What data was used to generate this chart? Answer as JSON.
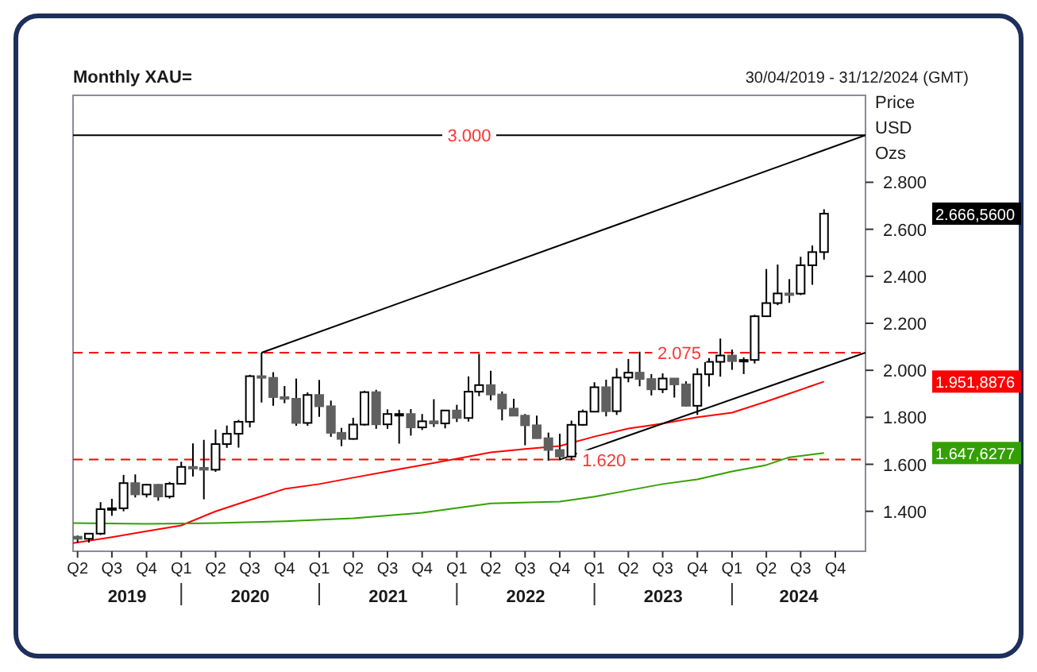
{
  "chart_data": {
    "type": "candlestick",
    "title": "Monthly XAU=",
    "subtitle": "30/04/2019 - 31/12/2024 (GMT)",
    "ylabel": "Price USD Ozs",
    "x": [
      "2019-04",
      "2019-05",
      "2019-06",
      "2019-07",
      "2019-08",
      "2019-09",
      "2019-10",
      "2019-11",
      "2019-12",
      "2020-01",
      "2020-02",
      "2020-03",
      "2020-04",
      "2020-05",
      "2020-06",
      "2020-07",
      "2020-08",
      "2020-09",
      "2020-10",
      "2020-11",
      "2020-12",
      "2021-01",
      "2021-02",
      "2021-03",
      "2021-04",
      "2021-05",
      "2021-06",
      "2021-07",
      "2021-08",
      "2021-09",
      "2021-10",
      "2021-11",
      "2021-12",
      "2022-01",
      "2022-02",
      "2022-03",
      "2022-04",
      "2022-05",
      "2022-06",
      "2022-07",
      "2022-08",
      "2022-09",
      "2022-10",
      "2022-11",
      "2022-12",
      "2023-01",
      "2023-02",
      "2023-03",
      "2023-04",
      "2023-05",
      "2023-06",
      "2023-07",
      "2023-08",
      "2023-09",
      "2023-10",
      "2023-11",
      "2023-12",
      "2024-01",
      "2024-02",
      "2024-03",
      "2024-04",
      "2024-05",
      "2024-06",
      "2024-07",
      "2024-08",
      "2024-09"
    ],
    "ohlc": [
      [
        1292,
        1297,
        1266,
        1283
      ],
      [
        1283,
        1306,
        1267,
        1305
      ],
      [
        1305,
        1439,
        1299,
        1409
      ],
      [
        1409,
        1453,
        1381,
        1413
      ],
      [
        1413,
        1555,
        1400,
        1520
      ],
      [
        1520,
        1557,
        1459,
        1472
      ],
      [
        1472,
        1517,
        1459,
        1513
      ],
      [
        1513,
        1516,
        1445,
        1463
      ],
      [
        1463,
        1525,
        1454,
        1517
      ],
      [
        1517,
        1611,
        1517,
        1589
      ],
      [
        1589,
        1689,
        1548,
        1585
      ],
      [
        1585,
        1704,
        1451,
        1577
      ],
      [
        1577,
        1748,
        1568,
        1686
      ],
      [
        1686,
        1765,
        1670,
        1730
      ],
      [
        1730,
        1789,
        1671,
        1781
      ],
      [
        1781,
        1981,
        1757,
        1975
      ],
      [
        1975,
        2075,
        1863,
        1968
      ],
      [
        1968,
        1992,
        1849,
        1886
      ],
      [
        1886,
        1933,
        1860,
        1879
      ],
      [
        1879,
        1965,
        1764,
        1776
      ],
      [
        1776,
        1906,
        1764,
        1895
      ],
      [
        1895,
        1959,
        1802,
        1847
      ],
      [
        1847,
        1871,
        1717,
        1734
      ],
      [
        1734,
        1755,
        1677,
        1708
      ],
      [
        1708,
        1798,
        1705,
        1769
      ],
      [
        1769,
        1913,
        1765,
        1907
      ],
      [
        1907,
        1917,
        1751,
        1770
      ],
      [
        1770,
        1834,
        1751,
        1814
      ],
      [
        1814,
        1832,
        1688,
        1814
      ],
      [
        1814,
        1835,
        1722,
        1757
      ],
      [
        1757,
        1814,
        1746,
        1783
      ],
      [
        1783,
        1877,
        1759,
        1774
      ],
      [
        1774,
        1830,
        1753,
        1829
      ],
      [
        1829,
        1853,
        1780,
        1797
      ],
      [
        1797,
        1974,
        1782,
        1909
      ],
      [
        1909,
        2070,
        1890,
        1937
      ],
      [
        1937,
        1998,
        1872,
        1897
      ],
      [
        1897,
        1910,
        1787,
        1837
      ],
      [
        1837,
        1879,
        1805,
        1807
      ],
      [
        1807,
        1814,
        1681,
        1766
      ],
      [
        1766,
        1807,
        1709,
        1711
      ],
      [
        1711,
        1735,
        1615,
        1661
      ],
      [
        1661,
        1730,
        1617,
        1633
      ],
      [
        1633,
        1786,
        1617,
        1768
      ],
      [
        1768,
        1833,
        1765,
        1824
      ],
      [
        1824,
        1949,
        1823,
        1928
      ],
      [
        1928,
        1960,
        1804,
        1826
      ],
      [
        1826,
        2009,
        1810,
        1969
      ],
      [
        1969,
        2048,
        1949,
        1990
      ],
      [
        1990,
        2079,
        1932,
        1963
      ],
      [
        1963,
        1984,
        1893,
        1919
      ],
      [
        1919,
        1987,
        1903,
        1965
      ],
      [
        1965,
        1966,
        1884,
        1940
      ],
      [
        1940,
        1953,
        1846,
        1849
      ],
      [
        1849,
        2009,
        1810,
        1983
      ],
      [
        1983,
        2052,
        1931,
        2036
      ],
      [
        2036,
        2135,
        1973,
        2063
      ],
      [
        2063,
        2088,
        2002,
        2039
      ],
      [
        2039,
        2055,
        1984,
        2044
      ],
      [
        2044,
        2236,
        2029,
        2230
      ],
      [
        2230,
        2431,
        2228,
        2286
      ],
      [
        2286,
        2450,
        2277,
        2327
      ],
      [
        2327,
        2388,
        2287,
        2326
      ],
      [
        2326,
        2483,
        2320,
        2447
      ],
      [
        2447,
        2531,
        2364,
        2503
      ],
      [
        2503,
        2685,
        2471,
        2666.56
      ]
    ],
    "series": [
      {
        "type": "line",
        "color": "#ff0000",
        "x": [
          "2019-03-20",
          "2019-07",
          "2019-10",
          "2020-01",
          "2020-04",
          "2020-07",
          "2020-10",
          "2021-01",
          "2021-04",
          "2021-07",
          "2021-10",
          "2022-01",
          "2022-04",
          "2022-07",
          "2022-10",
          "2023-01",
          "2023-04",
          "2023-07",
          "2023-10",
          "2024-01",
          "2024-04",
          "2024-06",
          "2024-09"
        ],
        "values": [
          1265,
          1290,
          1315,
          1340,
          1400,
          1448,
          1495,
          1516,
          1543,
          1570,
          1597,
          1624,
          1651,
          1665,
          1678,
          1718,
          1752,
          1773,
          1800,
          1820,
          1867,
          1901,
          1952
        ]
      },
      {
        "type": "line",
        "color": "#33a000",
        "x": [
          "2019-03-20",
          "2019-10",
          "2020-04",
          "2020-10",
          "2021-04",
          "2021-10",
          "2022-04",
          "2022-10",
          "2023-01",
          "2023-04",
          "2023-07",
          "2023-10",
          "2024-01",
          "2024-04",
          "2024-06",
          "2024-09"
        ],
        "values": [
          1350,
          1347,
          1350,
          1358,
          1370,
          1394,
          1434,
          1441,
          1462,
          1489,
          1516,
          1536,
          1570,
          1597,
          1630,
          1648
        ]
      },
      {
        "type": "line",
        "color": "#000000",
        "x": [
          "2020-08",
          "2024-12-20"
        ],
        "values": [
          2075,
          3000
        ]
      },
      {
        "type": "line",
        "color": "#000000",
        "x": [
          "2022-10",
          "2024-12-20"
        ],
        "values": [
          1620,
          2075
        ]
      }
    ],
    "xlim": [
      "2019-03-20",
      "2024-12-20"
    ],
    "xticks": [
      {
        "value": "2019-04",
        "label": "Q2"
      },
      {
        "value": "2019-07",
        "label": "Q3"
      },
      {
        "value": "2019-10",
        "label": "Q4"
      },
      {
        "value": "2020-01",
        "label": "Q1"
      },
      {
        "value": "2020-04",
        "label": "Q2"
      },
      {
        "value": "2020-07",
        "label": "Q3"
      },
      {
        "value": "2020-10",
        "label": "Q4"
      },
      {
        "value": "2021-01",
        "label": "Q1"
      },
      {
        "value": "2021-04",
        "label": "Q2"
      },
      {
        "value": "2021-07",
        "label": "Q3"
      },
      {
        "value": "2021-10",
        "label": "Q4"
      },
      {
        "value": "2022-01",
        "label": "Q1"
      },
      {
        "value": "2022-04",
        "label": "Q2"
      },
      {
        "value": "2022-07",
        "label": "Q3"
      },
      {
        "value": "2022-10",
        "label": "Q4"
      },
      {
        "value": "2023-01",
        "label": "Q1"
      },
      {
        "value": "2023-04",
        "label": "Q2"
      },
      {
        "value": "2023-07",
        "label": "Q3"
      },
      {
        "value": "2023-10",
        "label": "Q4"
      },
      {
        "value": "2024-01",
        "label": "Q1"
      },
      {
        "value": "2024-04",
        "label": "Q2"
      },
      {
        "value": "2024-07",
        "label": "Q3"
      },
      {
        "value": "2024-10",
        "label": "Q4"
      }
    ],
    "ylim": [
      1230,
      3170
    ],
    "yticks": [
      {
        "value": 1400,
        "label": "1.400"
      },
      {
        "value": 1600,
        "label": "1.600"
      },
      {
        "value": 1800,
        "label": "1.800"
      },
      {
        "value": 2000,
        "label": "2.000"
      },
      {
        "value": 2200,
        "label": "2.200"
      },
      {
        "value": 2400,
        "label": "2.400"
      },
      {
        "value": 2600,
        "label": "2.600"
      },
      {
        "value": 2800,
        "label": "2.800"
      }
    ],
    "ref_lines": [
      {
        "axis": "y",
        "value": 3000,
        "label": "3.000",
        "color": "#000000",
        "line_style": "solid"
      },
      {
        "axis": "y",
        "value": 2075,
        "label": "2.075",
        "color": "#ff0000",
        "line_style": "dashed"
      },
      {
        "axis": "y",
        "value": 1620,
        "label": "1.620",
        "color": "#ff0000",
        "line_style": "dashed"
      }
    ],
    "annotations": [
      "2019",
      "2020",
      "2021",
      "2022",
      "2023",
      "2024",
      "2.666,5600",
      "1.951,8876",
      "1.647,6277"
    ],
    "grid": false
  }
}
